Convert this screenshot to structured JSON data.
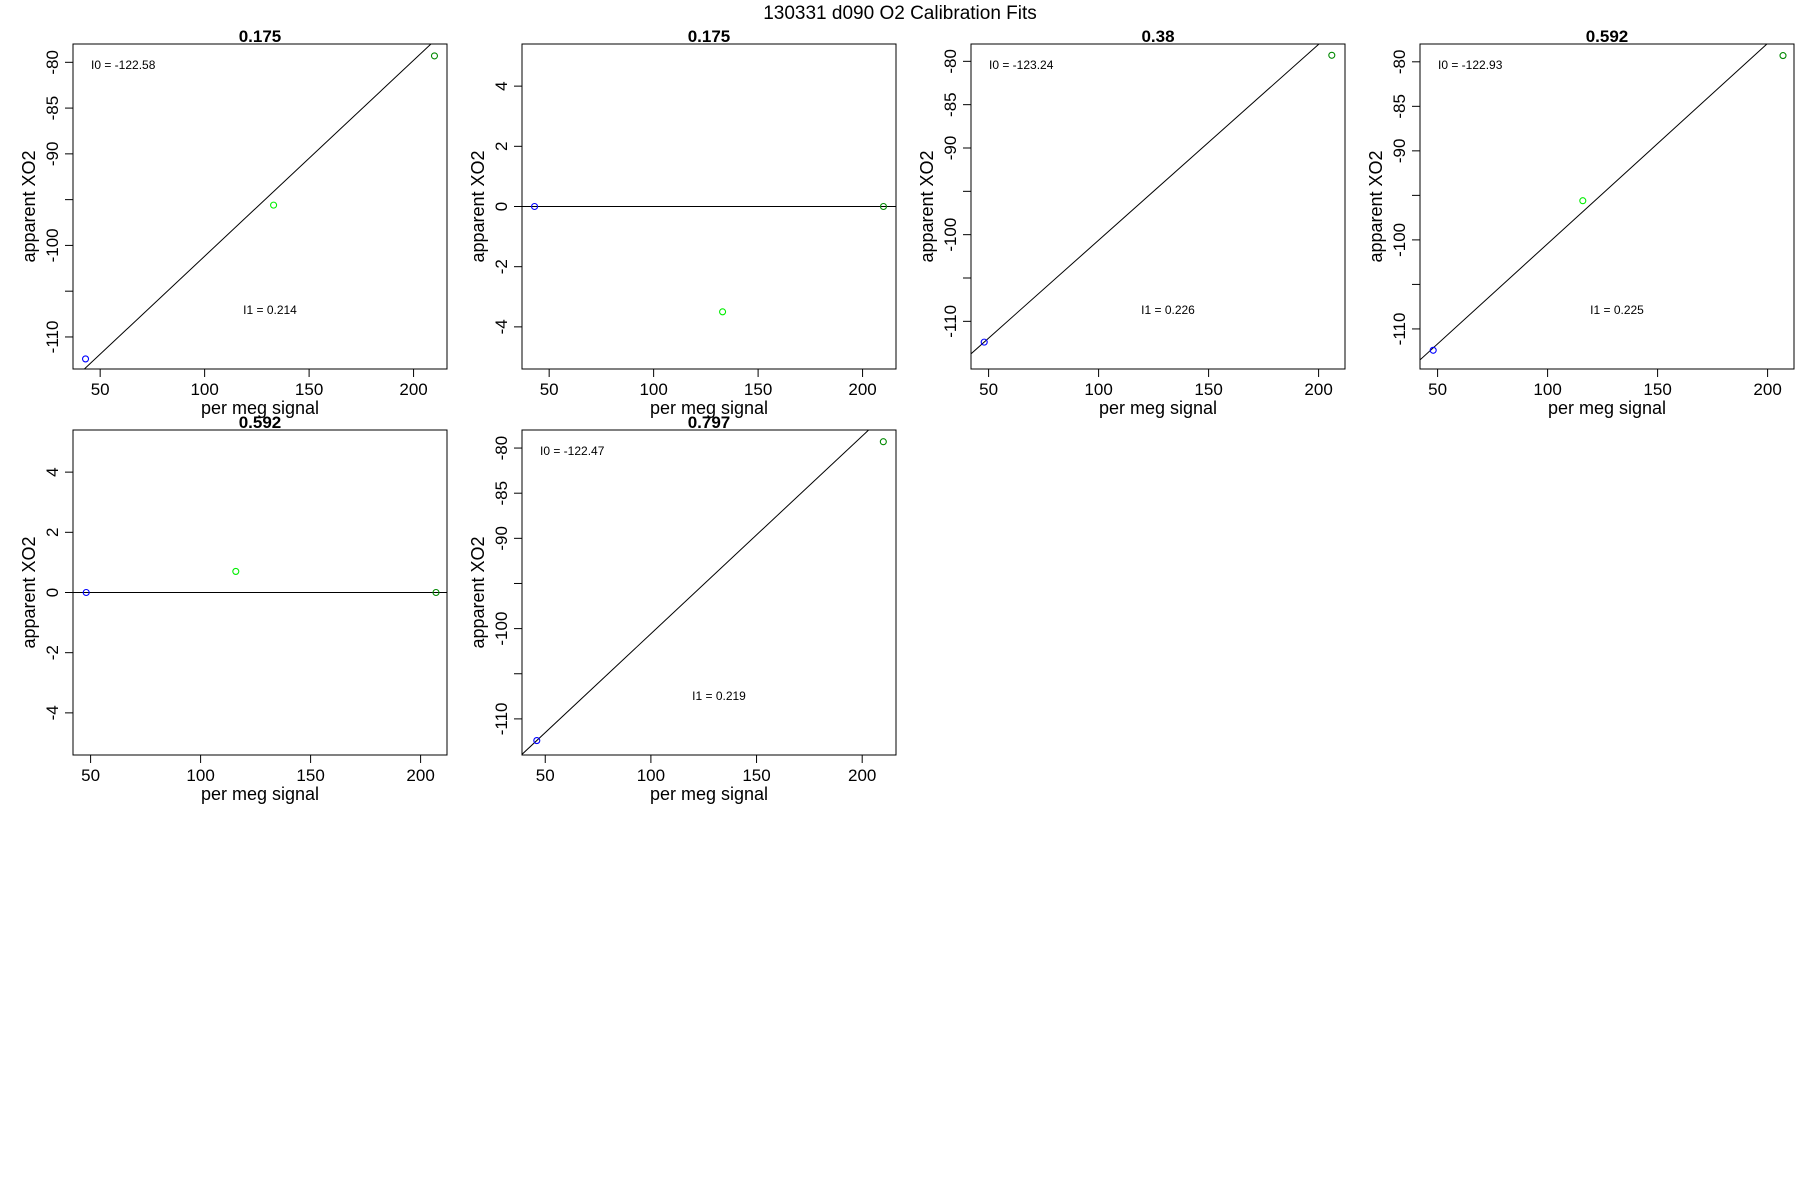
{
  "title": "130331   d090   O2 Calibration Fits",
  "chart_data": [
    {
      "type": "scatter",
      "title": "0.175",
      "xlabel": "per meg signal",
      "ylabel": "apparent XO2",
      "xlim": [
        37,
        216
      ],
      "ylim": [
        -113.5,
        -78
      ],
      "xticks": [
        50,
        100,
        150,
        200
      ],
      "yticks": [
        -110,
        -105,
        -100,
        -95,
        -90,
        -85,
        -80
      ],
      "yticklabels": [
        "-110",
        "",
        "-100",
        "",
        "-90",
        "-85",
        "-80"
      ],
      "points": [
        {
          "x": 43,
          "y": -112.4,
          "color": "#0000ff"
        },
        {
          "x": 133,
          "y": -95.6,
          "color": "#00ee00"
        },
        {
          "x": 210,
          "y": -79.3,
          "color": "#008800"
        }
      ],
      "fit": {
        "intercept": -122.58,
        "slope": 0.214
      },
      "annotations": [
        {
          "text": "I0 =  -122.58",
          "pos": "top-left"
        },
        {
          "text": "I1 =  0.214",
          "pos": "bottom-center"
        }
      ]
    },
    {
      "type": "scatter",
      "title": "0.175",
      "xlabel": "per meg signal",
      "ylabel": "apparent XO2",
      "xlim": [
        37,
        216
      ],
      "ylim": [
        -5.4,
        5.4
      ],
      "xticks": [
        50,
        100,
        150,
        200
      ],
      "yticks": [
        -4,
        -2,
        0,
        2,
        4
      ],
      "yticklabels": [
        "-4",
        "-2",
        "0",
        "2",
        "4"
      ],
      "points": [
        {
          "x": 43,
          "y": 0,
          "color": "#0000ff"
        },
        {
          "x": 133,
          "y": -3.5,
          "color": "#00ee00"
        },
        {
          "x": 210,
          "y": 0,
          "color": "#008800"
        }
      ],
      "fit": {
        "intercept": 0,
        "slope": 0
      },
      "annotations": []
    },
    {
      "type": "scatter",
      "title": "0.38",
      "xlabel": "per meg signal",
      "ylabel": "apparent XO2",
      "xlim": [
        42,
        212
      ],
      "ylim": [
        -115.5,
        -78
      ],
      "xticks": [
        50,
        100,
        150,
        200
      ],
      "yticks": [
        -110,
        -105,
        -100,
        -95,
        -90,
        -85,
        -80
      ],
      "yticklabels": [
        "-110",
        "",
        "-100",
        "",
        "-90",
        "-85",
        "-80"
      ],
      "points": [
        {
          "x": 48,
          "y": -112.4,
          "color": "#0000ff"
        },
        {
          "x": 206,
          "y": -79.3,
          "color": "#008800"
        }
      ],
      "fit": {
        "intercept": -123.24,
        "slope": 0.226
      },
      "annotations": [
        {
          "text": "I0 =  -123.24",
          "pos": "top-left"
        },
        {
          "text": "I1 =  0.226",
          "pos": "bottom-center"
        }
      ]
    },
    {
      "type": "scatter",
      "title": "0.592",
      "xlabel": "per meg signal",
      "ylabel": "apparent XO2",
      "xlim": [
        42,
        212
      ],
      "ylim": [
        -114.5,
        -78
      ],
      "xticks": [
        50,
        100,
        150,
        200
      ],
      "yticks": [
        -110,
        -105,
        -100,
        -95,
        -90,
        -85,
        -80
      ],
      "yticklabels": [
        "-110",
        "",
        "-100",
        "",
        "-90",
        "-85",
        "-80"
      ],
      "points": [
        {
          "x": 48,
          "y": -112.4,
          "color": "#0000ff"
        },
        {
          "x": 116,
          "y": -95.6,
          "color": "#00ee00"
        },
        {
          "x": 207,
          "y": -79.3,
          "color": "#008800"
        }
      ],
      "fit": {
        "intercept": -122.93,
        "slope": 0.225
      },
      "annotations": [
        {
          "text": "I0 =  -122.93",
          "pos": "top-left"
        },
        {
          "text": "I1 =  0.225",
          "pos": "bottom-center"
        }
      ]
    },
    {
      "type": "scatter",
      "title": "0.592",
      "xlabel": "per meg signal",
      "ylabel": "apparent XO2",
      "xlim": [
        42,
        212
      ],
      "ylim": [
        -5.4,
        5.4
      ],
      "xticks": [
        50,
        100,
        150,
        200
      ],
      "yticks": [
        -4,
        -2,
        0,
        2,
        4
      ],
      "yticklabels": [
        "-4",
        "-2",
        "0",
        "2",
        "4"
      ],
      "points": [
        {
          "x": 48,
          "y": 0,
          "color": "#0000ff"
        },
        {
          "x": 116,
          "y": 0.7,
          "color": "#00ee00"
        },
        {
          "x": 207,
          "y": 0,
          "color": "#008800"
        }
      ],
      "fit": {
        "intercept": 0,
        "slope": 0
      },
      "annotations": []
    },
    {
      "type": "scatter",
      "title": "0.797",
      "xlabel": "per meg signal",
      "ylabel": "apparent XO2",
      "xlim": [
        39,
        216
      ],
      "ylim": [
        -114,
        -78
      ],
      "xticks": [
        50,
        100,
        150,
        200
      ],
      "yticks": [
        -110,
        -105,
        -100,
        -95,
        -90,
        -85,
        -80
      ],
      "yticklabels": [
        "-110",
        "",
        "-100",
        "",
        "-90",
        "-85",
        "-80"
      ],
      "points": [
        {
          "x": 46,
          "y": -112.4,
          "color": "#0000ff"
        },
        {
          "x": 210,
          "y": -79.3,
          "color": "#008800"
        }
      ],
      "fit": {
        "intercept": -122.47,
        "slope": 0.219
      },
      "annotations": [
        {
          "text": "I0 =  -122.47",
          "pos": "top-left"
        },
        {
          "text": "I1 =  0.219",
          "pos": "bottom-center"
        }
      ]
    }
  ]
}
